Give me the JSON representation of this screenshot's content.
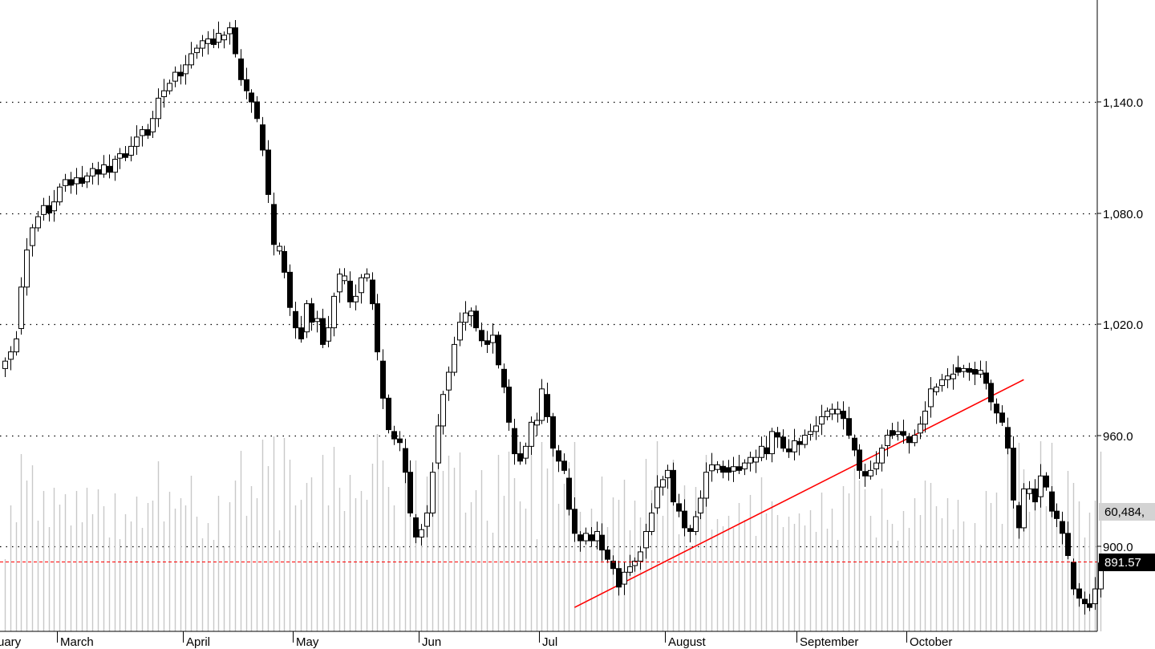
{
  "chart_data": {
    "type": "candlestick",
    "title": "",
    "xlabel": "",
    "ylabel": "",
    "ylim": [
      855,
      1195
    ],
    "y_ticks": [
      900,
      960,
      1020,
      1080,
      1140
    ],
    "y_tick_labels": [
      "900.0",
      "960.0",
      "1,020.0",
      "1,080.0",
      "1,140.0"
    ],
    "month_labels": [
      {
        "label": "ruary",
        "index": -1
      },
      {
        "label": "March",
        "index": 10
      },
      {
        "label": "April",
        "index": 33
      },
      {
        "label": "May",
        "index": 53
      },
      {
        "label": "Jun",
        "index": 76
      },
      {
        "label": "Jul",
        "index": 98
      },
      {
        "label": "August",
        "index": 121
      },
      {
        "label": "September",
        "index": 145
      },
      {
        "label": "October",
        "index": 165
      }
    ],
    "last_price": 891.57,
    "last_price_label": "891.57",
    "volume_label": "60,484,",
    "volume_label_value": 60484,
    "grid": "horizontal-dotted",
    "colors": {
      "up": "#ffffff",
      "down": "#000000",
      "outline": "#000000",
      "trendline": "#ff0000",
      "price_line": "#ff0000",
      "volume": "#c8c8c8"
    },
    "trendline": {
      "start": {
        "index": 104,
        "price": 867
      },
      "end": {
        "index": 186,
        "price": 990
      }
    },
    "closes": [
      1000,
      1005,
      1012,
      1040,
      1060,
      1072,
      1078,
      1084,
      1080,
      1086,
      1094,
      1098,
      1095,
      1099,
      1096,
      1100,
      1104,
      1101,
      1106,
      1102,
      1109,
      1112,
      1110,
      1116,
      1121,
      1125,
      1122,
      1131,
      1142,
      1146,
      1150,
      1156,
      1154,
      1160,
      1166,
      1169,
      1173,
      1174,
      1171,
      1177,
      1176,
      1180,
      1166,
      1152,
      1146,
      1140,
      1131,
      1114,
      1090,
      1063,
      1062,
      1048,
      1029,
      1018,
      1012,
      1031,
      1021,
      1023,
      1009,
      1018,
      1035,
      1047,
      1046,
      1032,
      1035,
      1045,
      1047,
      1031,
      1005,
      980,
      963,
      958,
      956,
      940,
      918,
      905,
      909,
      918,
      940,
      965,
      982,
      994,
      1009,
      1021,
      1026,
      1027,
      1018,
      1011,
      1009,
      1014,
      998,
      986,
      967,
      950,
      946,
      954,
      967,
      968,
      985,
      970,
      953,
      946,
      941,
      920,
      907,
      903,
      907,
      903,
      908,
      898,
      893,
      888,
      878,
      886,
      889,
      892,
      897,
      908,
      918,
      932,
      936,
      941,
      924,
      919,
      910,
      908,
      916,
      926,
      940,
      944,
      944,
      940,
      940,
      943,
      941,
      945,
      948,
      948,
      954,
      950,
      962,
      959,
      953,
      951,
      957,
      955,
      960,
      962,
      965,
      970,
      973,
      974,
      974,
      969,
      960,
      952,
      941,
      938,
      941,
      945,
      953,
      960,
      960,
      962,
      960,
      956,
      960,
      966,
      973,
      985,
      986,
      990,
      992,
      993,
      994,
      996,
      994,
      993,
      995,
      988,
      978,
      972,
      967,
      953,
      925,
      910,
      931,
      931,
      924,
      938,
      932,
      919,
      915,
      907,
      895,
      877,
      872,
      869,
      867,
      877,
      891
    ]
  }
}
